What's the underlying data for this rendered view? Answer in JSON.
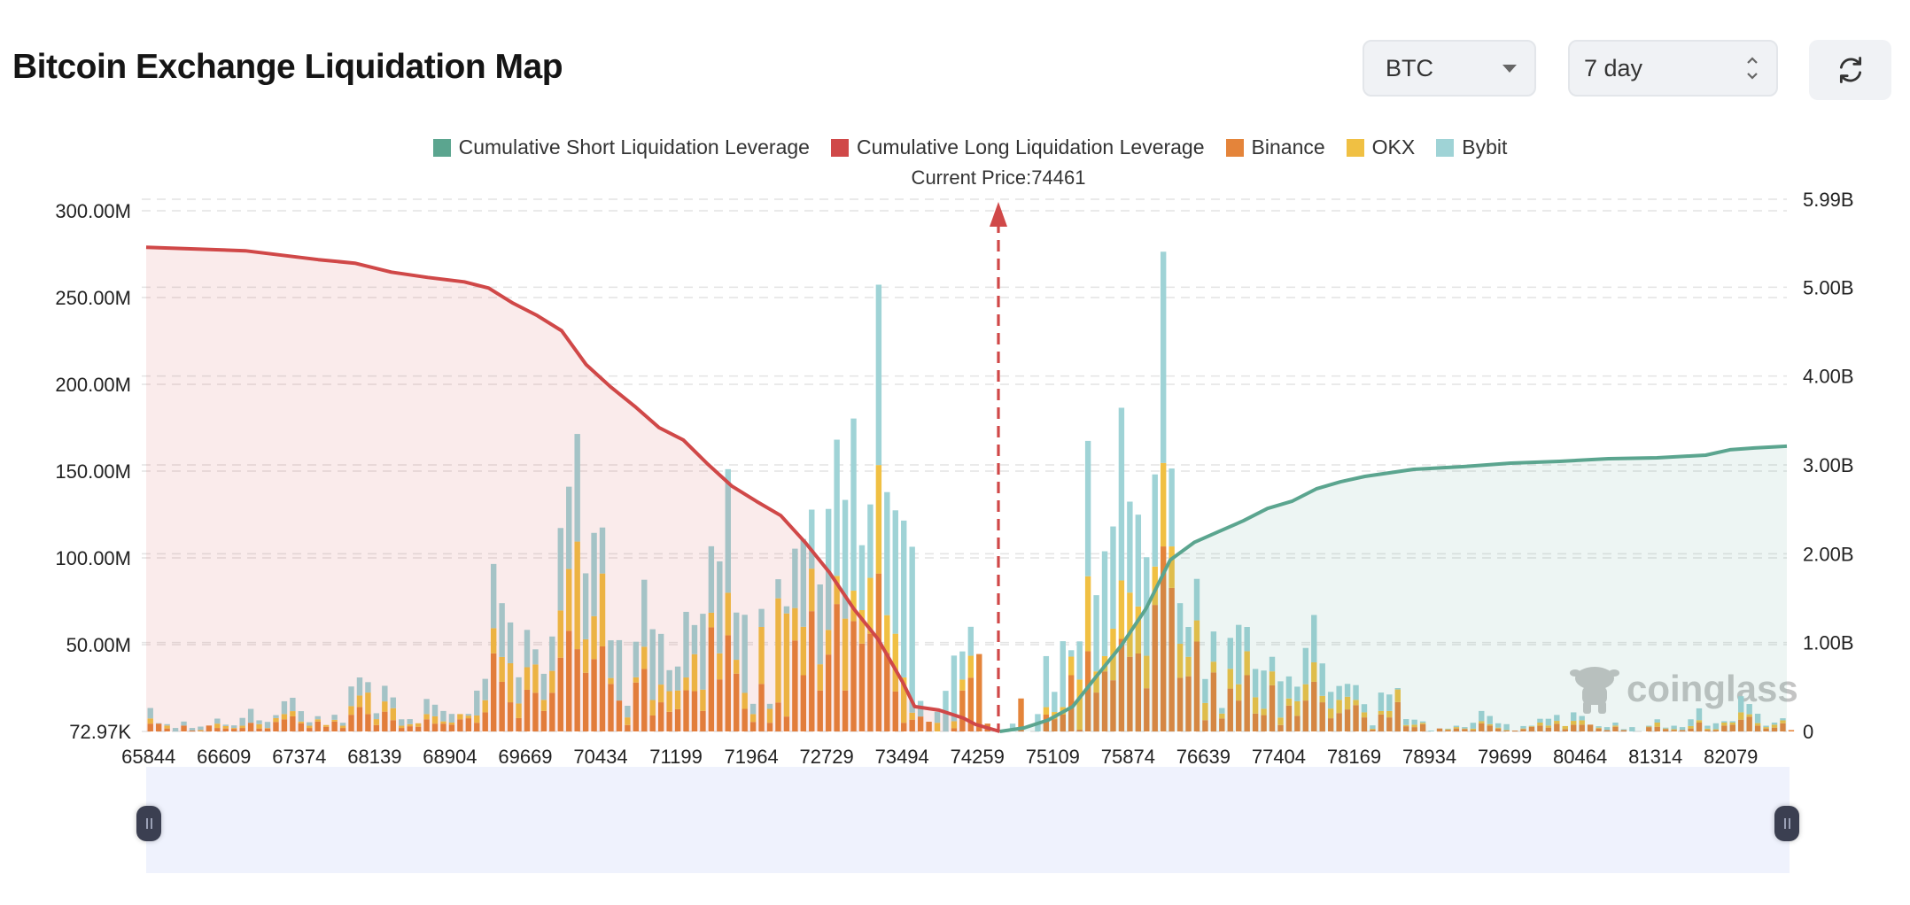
{
  "header": {
    "title": "Bitcoin Exchange Liquidation Map",
    "symbol_select": "BTC",
    "range_select": "7 day",
    "refresh_icon": "refresh-icon"
  },
  "legend": [
    {
      "label": "Cumulative Short Liquidation Leverage",
      "color": "#5ba58f"
    },
    {
      "label": "Cumulative Long Liquidation Leverage",
      "color": "#d04848"
    },
    {
      "label": "Binance",
      "color": "#e4843a"
    },
    {
      "label": "OKX",
      "color": "#f0c043"
    },
    {
      "label": "Bybit",
      "color": "#9fd3d6"
    }
  ],
  "current_price_label": "Current Price:74461",
  "watermark": "coinglass",
  "chart_data": {
    "type": "bar",
    "stacked": true,
    "current_price": 74461,
    "x_tick_labels": [
      "65844",
      "66609",
      "67374",
      "68139",
      "68904",
      "69669",
      "70434",
      "71199",
      "71964",
      "72729",
      "73494",
      "74259",
      "75109",
      "75874",
      "76639",
      "77404",
      "78169",
      "78934",
      "79699",
      "80464",
      "81314",
      "82079"
    ],
    "y_left": {
      "ticks": [
        "72.97K",
        "50.00M",
        "100.00M",
        "150.00M",
        "200.00M",
        "250.00M",
        "300.00M"
      ],
      "range_millions": [
        0,
        300
      ]
    },
    "y_right": {
      "ticks": [
        "0",
        "1.00B",
        "2.00B",
        "3.00B",
        "4.00B",
        "5.00B",
        "5.99B"
      ],
      "range_billions": [
        0,
        5.99
      ]
    },
    "grid": true,
    "legend_position": "top",
    "bar_units": "millions",
    "series": [
      {
        "name": "Binance",
        "color": "#e4843a",
        "values": [
          4.5,
          4.5,
          1.7,
          0,
          3.4,
          0.5,
          0.3,
          3.4,
          2,
          1.7,
          1.5,
          2,
          5,
          1.7,
          1.7,
          5.5,
          7,
          8.7,
          4.7,
          2,
          5.7,
          2.7,
          5.7,
          2,
          9.6,
          14,
          10,
          3.7,
          11.4,
          6.5,
          2,
          3,
          2.7,
          7,
          4.5,
          4.5,
          3.9,
          7,
          7.6,
          5,
          11,
          45,
          28.6,
          16.8,
          7.7,
          24,
          22.3,
          11.8,
          22.3,
          42.5,
          58,
          47.4,
          33.8,
          41.7,
          49,
          27.4,
          17.8,
          3.7,
          28.2,
          36,
          9.2,
          16.8,
          11.3,
          12.8,
          23.7,
          23.2,
          11.8,
          60,
          30,
          55.4,
          33.3,
          13,
          5.5,
          27.4,
          5,
          16.7,
          8.6,
          52.4,
          32.4,
          69.3,
          23.6,
          44.3,
          73.4,
          23.6,
          63.5,
          50.6,
          56.3,
          91,
          45.2,
          23,
          5,
          6.8,
          8.6,
          5.6,
          0,
          0,
          1.8,
          23.6,
          31,
          44.6,
          4.5,
          0,
          0,
          0,
          19,
          0,
          0,
          9.7,
          7.1,
          9.7,
          32.4,
          1,
          46.2,
          22.4,
          34.6,
          29.5,
          53.3,
          43,
          44.9,
          24.9,
          72.9,
          106.6,
          82.7,
          30.9,
          31.8,
          51.8,
          6.5,
          34,
          7.5,
          24.7,
          17.8,
          32.4,
          10.3,
          9.4,
          26.6,
          3.7,
          14.9,
          9,
          17.8,
          28.6,
          16.8,
          7.6,
          10.6,
          12.7,
          15.2,
          8.1,
          1,
          9.8,
          8.1,
          16.9,
          3,
          2.5,
          4.2,
          0,
          1.7,
          0.8,
          1.7,
          1.4,
          0.8,
          4.7,
          3.4,
          1.7,
          0.5,
          0.5,
          1.4,
          2.7,
          3.4,
          2.2,
          4.4,
          1.4,
          3.9,
          3.9,
          3.9,
          1.7,
          0.8,
          2.7,
          0.8,
          0,
          0,
          2.5,
          2.7,
          1.4,
          0.8,
          0.8,
          1.7,
          5.1,
          0.8,
          0.8,
          3.4,
          3.9,
          6.8,
          8.5,
          3.4,
          1.7,
          2.2,
          4.7,
          0.8
        ]
      },
      {
        "name": "OKX",
        "color": "#f0c043",
        "values": [
          3,
          0,
          1.7,
          0,
          0,
          0,
          0.5,
          0,
          2.5,
          1.4,
          0.5,
          1.3,
          0,
          2.5,
          0.3,
          2.2,
          3,
          3,
          1,
          1.3,
          1.3,
          1,
          1,
          1.3,
          5,
          6.7,
          12.4,
          3.4,
          5.9,
          6.9,
          1.3,
          1.2,
          2,
          3,
          4.2,
          1.3,
          1.2,
          3,
          1.5,
          4.2,
          7,
          14.5,
          14.3,
          22.5,
          8.4,
          13,
          16.3,
          6.4,
          12.6,
          27.2,
          35.6,
          62,
          19.3,
          24.7,
          42,
          3.4,
          0,
          4.4,
          3,
          12.8,
          8.9,
          10.2,
          11.9,
          10.8,
          7.4,
          21.3,
          12.3,
          8.4,
          15,
          24.5,
          8,
          9.2,
          4.5,
          32.8,
          8,
          60,
          59.4,
          18.7,
          27.9,
          24.5,
          15.1,
          14.2,
          16.2,
          41.4,
          17.6,
          19.3,
          32.2,
          62.5,
          21.8,
          33.3,
          26.1,
          4,
          0,
          0,
          5,
          0,
          4.1,
          6.3,
          12.6,
          0,
          0,
          0,
          0,
          0,
          0,
          0,
          0,
          4.3,
          4.1,
          4.3,
          10.7,
          28.9,
          43.2,
          12.2,
          8.8,
          29.7,
          33.7,
          37,
          27.1,
          18.7,
          22.1,
          48.1,
          23.9,
          19.6,
          11.2,
          12.2,
          9.9,
          6.2,
          2.8,
          11.4,
          9.4,
          13.8,
          9.4,
          3.7,
          8,
          4.3,
          4.1,
          8.4,
          9.4,
          11.2,
          3.7,
          5.6,
          7.6,
          7.3,
          3,
          2.9,
          0.5,
          2,
          3.7,
          7.3,
          0.7,
          1.4,
          0.8,
          0,
          0,
          0.5,
          0.8,
          0.3,
          0.8,
          1.2,
          0.8,
          0.5,
          0.3,
          0,
          0.3,
          0.3,
          1.7,
          1.2,
          1.7,
          1.7,
          2.2,
          2.5,
          0,
          0.5,
          0,
          0.7,
          0,
          0,
          0,
          0.3,
          2.4,
          0.3,
          0.5,
          0,
          1.4,
          1.4,
          0.8,
          0.5,
          1.7,
          1.2,
          4.2,
          1.4,
          1.4,
          0.8,
          1.7,
          1.7,
          0
        ]
      },
      {
        "name": "Bybit",
        "color": "#9fd3d6",
        "values": [
          6,
          0.3,
          0.8,
          2,
          2.3,
          1.5,
          2,
          0,
          2.9,
          0.8,
          1.5,
          4.5,
          8,
          2.2,
          3.5,
          1.7,
          7.4,
          7.7,
          6,
          2,
          1.8,
          0,
          2.9,
          1.7,
          11.3,
          10.4,
          6,
          3.4,
          9,
          6.2,
          3.7,
          2.9,
          0,
          8.7,
          6.7,
          6,
          5,
          0,
          1,
          14.3,
          12.3,
          37,
          31,
          23.5,
          15.1,
          21.5,
          8.7,
          15,
          19.8,
          47.5,
          47.4,
          62,
          38,
          48,
          26.5,
          21.7,
          34.8,
          6.7,
          20.5,
          38.6,
          40.8,
          29.2,
          12.1,
          13.8,
          37.8,
          16.8,
          43.7,
          38.3,
          53,
          71.2,
          27.2,
          45,
          5.9,
          10.4,
          2.9,
          11,
          4.1,
          34.2,
          50.6,
          34,
          46,
          69.7,
          78.5,
          68.4,
          99.2,
          37.4,
          42.3,
          103.9,
          70.9,
          71.1,
          90.4,
          95.6,
          9,
          0,
          6.3,
          23.4,
          37.8,
          16.2,
          16.7,
          0,
          0,
          0,
          0,
          4.5,
          0,
          0,
          10,
          29.4,
          11.6,
          38,
          3.7,
          22,
          78,
          43.9,
          60.4,
          58.9,
          99.5,
          52.4,
          52.9,
          56.8,
          53.1,
          121.7,
          44.9,
          23.4,
          17.2,
          23.9,
          13.8,
          17.4,
          3.2,
          17.8,
          34.2,
          14,
          16.3,
          22,
          8.4,
          20.9,
          12.7,
          8.4,
          20.9,
          27.3,
          18.7,
          9.6,
          8,
          7.4,
          8.5,
          4.7,
          2,
          10.6,
          9.5,
          0.8,
          3.4,
          2.9,
          0.8,
          0.5,
          0,
          0.3,
          0.8,
          0.8,
          3.4,
          5.9,
          4.7,
          2.5,
          3.4,
          0,
          1.4,
          0.3,
          2.2,
          3.9,
          3.4,
          0,
          4.9,
          2.5,
          0,
          0.8,
          1.7,
          1.7,
          0.5,
          2.5,
          0,
          0.5,
          1.9,
          0.5,
          2,
          1.7,
          3.9,
          6.8,
          1.7,
          3.4,
          0.8,
          0.8,
          9.3,
          5.9,
          5.4,
          0.8,
          1.2,
          1.2,
          0
        ]
      }
    ],
    "lines": [
      {
        "name": "Cumulative Long Liquidation Leverage",
        "color": "#d04848",
        "units": "billions",
        "axis": "right",
        "points": [
          [
            65844,
            5.45
          ],
          [
            66822,
            5.41
          ],
          [
            67198,
            5.36
          ],
          [
            67574,
            5.31
          ],
          [
            67950,
            5.27
          ],
          [
            68326,
            5.17
          ],
          [
            68702,
            5.11
          ],
          [
            69078,
            5.06
          ],
          [
            69329,
            4.99
          ],
          [
            69580,
            4.82
          ],
          [
            69830,
            4.68
          ],
          [
            70081,
            4.51
          ],
          [
            70332,
            4.13
          ],
          [
            70583,
            3.88
          ],
          [
            70833,
            3.66
          ],
          [
            71084,
            3.42
          ],
          [
            71335,
            3.28
          ],
          [
            71585,
            3.01
          ],
          [
            71836,
            2.76
          ],
          [
            72087,
            2.59
          ],
          [
            72338,
            2.43
          ],
          [
            72588,
            2.13
          ],
          [
            72839,
            1.79
          ],
          [
            73090,
            1.38
          ],
          [
            73340,
            1.04
          ],
          [
            73591,
            0.56
          ],
          [
            73717,
            0.28
          ],
          [
            73967,
            0.24
          ],
          [
            74218,
            0.15
          ],
          [
            74343,
            0.08
          ],
          [
            74594,
            0
          ]
        ]
      },
      {
        "name": "Cumulative Short Liquidation Leverage",
        "color": "#5ba58f",
        "units": "billions",
        "axis": "right",
        "points": [
          [
            74594,
            0
          ],
          [
            74845,
            0.04
          ],
          [
            75096,
            0.13
          ],
          [
            75346,
            0.28
          ],
          [
            75597,
            0.63
          ],
          [
            75848,
            0.97
          ],
          [
            76099,
            1.38
          ],
          [
            76349,
            1.93
          ],
          [
            76600,
            2.13
          ],
          [
            76851,
            2.25
          ],
          [
            77101,
            2.37
          ],
          [
            77352,
            2.51
          ],
          [
            77603,
            2.59
          ],
          [
            77854,
            2.73
          ],
          [
            78104,
            2.81
          ],
          [
            78355,
            2.87
          ],
          [
            78857,
            2.95
          ],
          [
            79358,
            2.98
          ],
          [
            79860,
            3.02
          ],
          [
            80361,
            3.04
          ],
          [
            80863,
            3.07
          ],
          [
            81364,
            3.08
          ],
          [
            81866,
            3.11
          ],
          [
            82116,
            3.17
          ],
          [
            82367,
            3.19
          ],
          [
            82680,
            3.21
          ]
        ]
      }
    ]
  }
}
